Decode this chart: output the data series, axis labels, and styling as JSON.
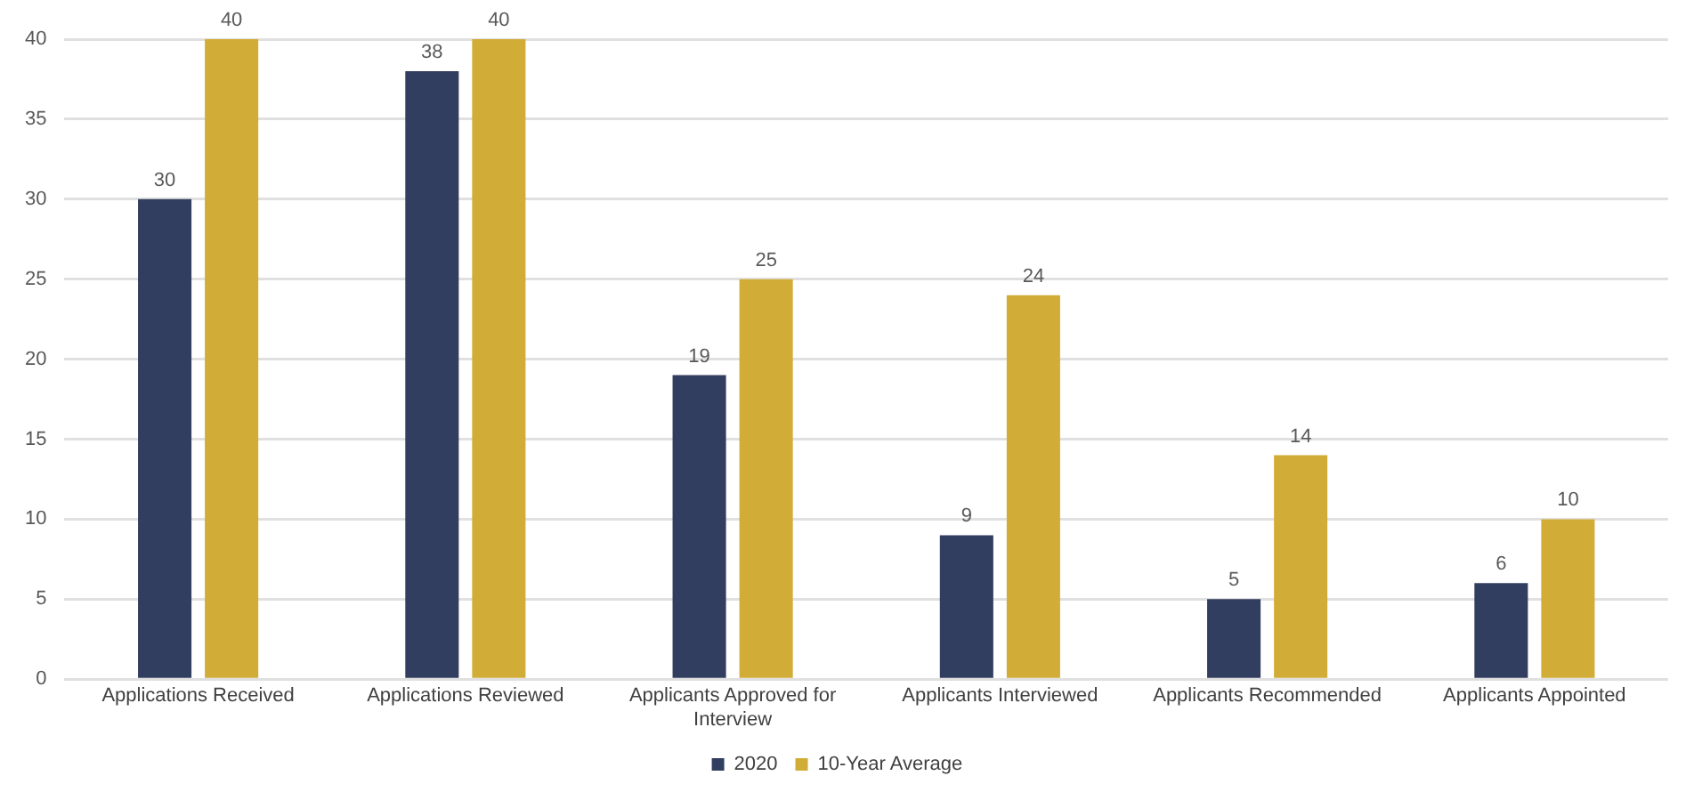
{
  "chart_data": {
    "type": "bar",
    "categories": [
      "Applications Received",
      "Applications Reviewed",
      "Applicants Approved for Interview",
      "Applicants Interviewed",
      "Applicants Recommended",
      "Applicants Appointed"
    ],
    "series": [
      {
        "name": "2020",
        "color": "#323e60",
        "values": [
          30,
          38,
          19,
          9,
          5,
          6
        ]
      },
      {
        "name": "10-Year Average",
        "color": "#d1ad37",
        "values": [
          40,
          40,
          25,
          24,
          14,
          10
        ]
      }
    ],
    "ylim": [
      0,
      40
    ],
    "yticks": [
      0,
      5,
      10,
      15,
      20,
      25,
      30,
      35,
      40
    ],
    "grid": "y",
    "legend": "bottom",
    "data_labels": true
  }
}
